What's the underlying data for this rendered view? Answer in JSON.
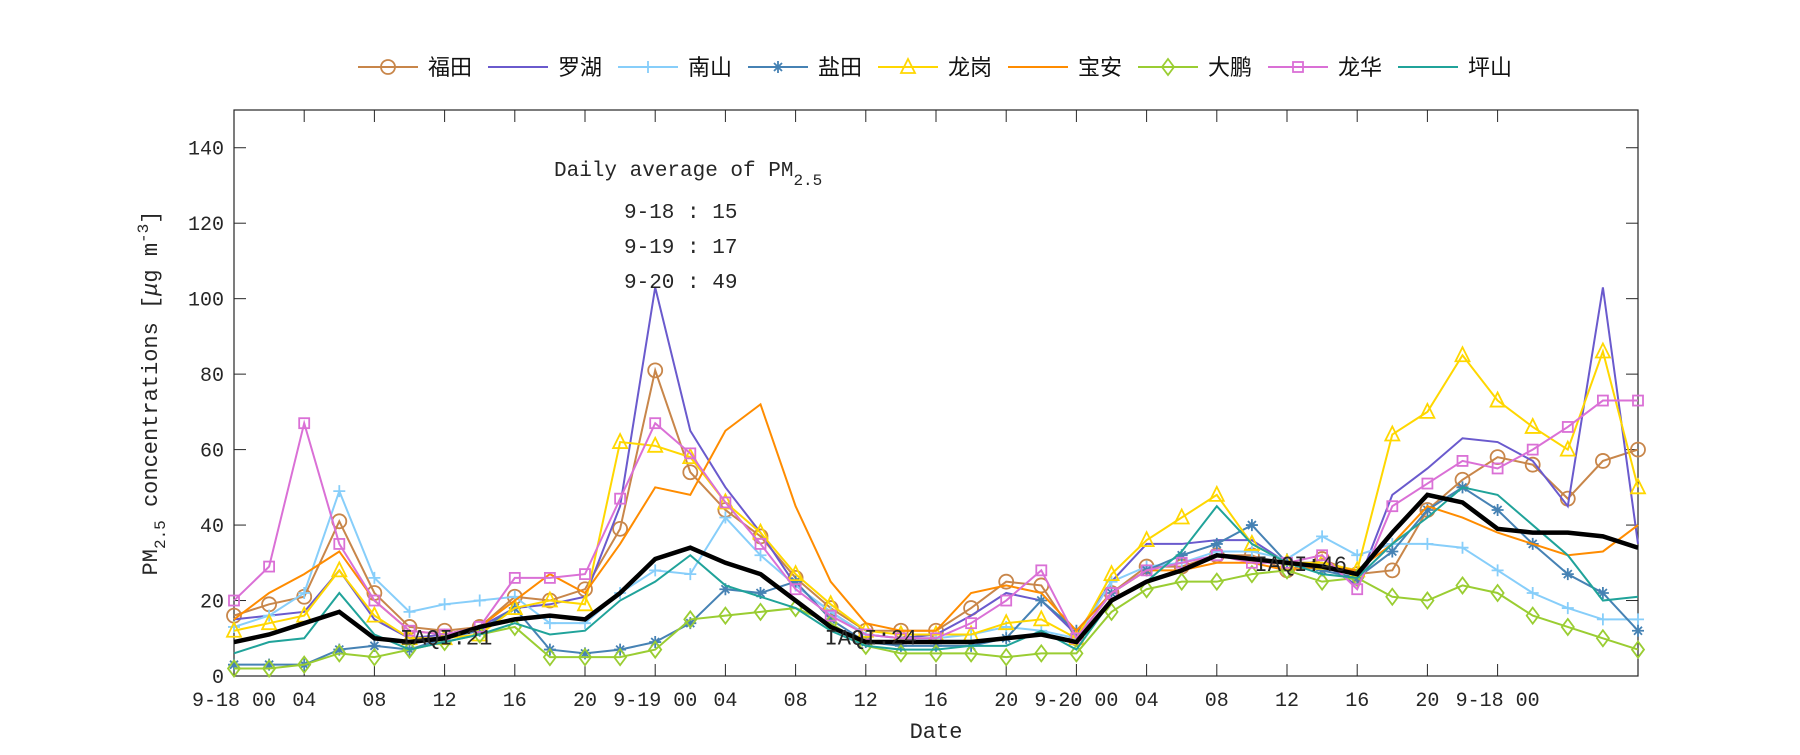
{
  "chart_data": {
    "type": "line",
    "xlabel": "Date",
    "ylabel": "PM2.5 concentrations [μg m-3]",
    "ylabel_parts": {
      "pre": "PM",
      "sub": "2.5",
      "mid": " concentrations [",
      "mu": "μ",
      "post": "g m",
      "sup": "-3",
      "end": "]"
    },
    "xlim": [
      0,
      80
    ],
    "ylim": [
      0,
      150
    ],
    "x_unit": "hours from 9-18 00",
    "x": [
      0,
      2,
      4,
      6,
      8,
      10,
      12,
      14,
      16,
      18,
      20,
      22,
      24,
      26,
      28,
      30,
      32,
      34,
      36,
      38,
      40,
      42,
      44,
      46,
      48,
      50,
      52,
      54,
      56,
      58,
      60,
      62,
      64,
      66,
      68,
      70,
      72,
      74,
      76,
      78,
      80
    ],
    "xticks": [
      {
        "v": 0,
        "label": "9-18 00"
      },
      {
        "v": 4,
        "label": "04"
      },
      {
        "v": 8,
        "label": "08"
      },
      {
        "v": 12,
        "label": "12"
      },
      {
        "v": 16,
        "label": "16"
      },
      {
        "v": 20,
        "label": "20"
      },
      {
        "v": 24,
        "label": "9-19 00"
      },
      {
        "v": 28,
        "label": "04"
      },
      {
        "v": 32,
        "label": "08"
      },
      {
        "v": 36,
        "label": "12"
      },
      {
        "v": 40,
        "label": "16"
      },
      {
        "v": 44,
        "label": "20"
      },
      {
        "v": 48,
        "label": "9-20 00"
      },
      {
        "v": 52,
        "label": "04"
      },
      {
        "v": 56,
        "label": "08"
      },
      {
        "v": 60,
        "label": "12"
      },
      {
        "v": 64,
        "label": "16"
      },
      {
        "v": 68,
        "label": "20"
      },
      {
        "v": 72,
        "label": "9-18 00"
      }
    ],
    "yticks": [
      0,
      20,
      40,
      60,
      80,
      100,
      120,
      140
    ],
    "grid": false,
    "legend_placement": "top-outside",
    "series": [
      {
        "name": "福田",
        "color": "#c8864a",
        "marker": "circle",
        "values": [
          16,
          19,
          21,
          41,
          22,
          13,
          12,
          13,
          21,
          20,
          23,
          39,
          81,
          54,
          44,
          37,
          26,
          18,
          12,
          12,
          12,
          18,
          25,
          24,
          10,
          22,
          29,
          29,
          32,
          32,
          28,
          31,
          27,
          28,
          44,
          52,
          58,
          56,
          47,
          57,
          60
        ]
      },
      {
        "name": "罗湖",
        "color": "#6a5acd",
        "marker": "none",
        "values": [
          15,
          16,
          17,
          28,
          15,
          10,
          11,
          13,
          18,
          19,
          21,
          45,
          103,
          65,
          50,
          38,
          24,
          17,
          11,
          10,
          11,
          16,
          22,
          20,
          11,
          25,
          35,
          35,
          36,
          36,
          30,
          30,
          24,
          48,
          55,
          63,
          62,
          57,
          45,
          103,
          35
        ]
      },
      {
        "name": "南山",
        "color": "#87cefa",
        "marker": "plus",
        "values": [
          13,
          16,
          22,
          49,
          26,
          17,
          19,
          20,
          21,
          14,
          14,
          22,
          28,
          27,
          42,
          32,
          24,
          17,
          11,
          10,
          10,
          11,
          13,
          12,
          10,
          25,
          29,
          30,
          33,
          33,
          31,
          37,
          32,
          35,
          35,
          34,
          28,
          22,
          18,
          15,
          15
        ]
      },
      {
        "name": "盐田",
        "color": "#4682b4",
        "marker": "star",
        "values": [
          3,
          3,
          3,
          7,
          8,
          7,
          10,
          12,
          18,
          7,
          6,
          7,
          9,
          14,
          23,
          22,
          25,
          15,
          9,
          8,
          8,
          8,
          10,
          20,
          12,
          22,
          28,
          32,
          35,
          40,
          30,
          28,
          26,
          33,
          44,
          50,
          44,
          35,
          27,
          22,
          12
        ]
      },
      {
        "name": "龙岗",
        "color": "#ffd700",
        "marker": "triangle",
        "values": [
          12,
          14,
          16,
          28,
          16,
          10,
          10,
          11,
          18,
          20,
          19,
          62,
          61,
          58,
          46,
          38,
          27,
          19,
          12,
          11,
          11,
          11,
          14,
          15,
          10,
          27,
          36,
          42,
          48,
          35,
          30,
          30,
          28,
          64,
          70,
          85,
          73,
          66,
          60,
          86,
          50
        ]
      },
      {
        "name": "宝安",
        "color": "#ff8c00",
        "marker": "none",
        "values": [
          15,
          22,
          27,
          33,
          20,
          12,
          11,
          13,
          20,
          27,
          22,
          35,
          50,
          48,
          65,
          72,
          45,
          25,
          14,
          12,
          12,
          22,
          24,
          22,
          12,
          22,
          28,
          28,
          30,
          30,
          28,
          29,
          28,
          35,
          45,
          42,
          38,
          35,
          32,
          33,
          40
        ]
      },
      {
        "name": "大鹏",
        "color": "#9acd32",
        "marker": "diamond",
        "values": [
          2,
          2,
          3,
          6,
          5,
          7,
          9,
          11,
          13,
          5,
          5,
          5,
          7,
          15,
          16,
          17,
          18,
          14,
          8,
          6,
          6,
          6,
          5,
          6,
          6,
          17,
          23,
          25,
          25,
          27,
          28,
          25,
          26,
          21,
          20,
          24,
          22,
          16,
          13,
          10,
          7
        ]
      },
      {
        "name": "龙华",
        "color": "#da70d6",
        "marker": "square",
        "values": [
          20,
          29,
          67,
          35,
          20,
          12,
          11,
          13,
          26,
          26,
          27,
          47,
          67,
          59,
          46,
          35,
          23,
          16,
          11,
          10,
          10,
          14,
          20,
          28,
          10,
          22,
          28,
          30,
          32,
          30,
          30,
          32,
          23,
          45,
          51,
          57,
          55,
          60,
          66,
          73,
          73
        ]
      },
      {
        "name": "坪山",
        "color": "#20a39a",
        "marker": "none",
        "values": [
          6,
          9,
          10,
          22,
          11,
          7,
          9,
          11,
          14,
          11,
          12,
          20,
          25,
          32,
          24,
          21,
          18,
          12,
          8,
          7,
          7,
          8,
          8,
          12,
          7,
          20,
          25,
          33,
          45,
          35,
          30,
          27,
          26,
          35,
          42,
          50,
          48,
          40,
          32,
          20,
          21
        ]
      }
    ],
    "average_line": {
      "color": "#000000",
      "values": [
        9,
        11,
        14,
        17,
        10,
        9,
        10,
        13,
        15,
        16,
        15,
        22,
        31,
        34,
        30,
        27,
        20,
        13,
        9,
        9,
        9,
        9,
        10,
        11,
        9,
        20,
        25,
        28,
        32,
        31,
        30,
        29,
        27,
        38,
        48,
        46,
        39,
        38,
        38,
        37,
        34
      ]
    },
    "annotations": {
      "box_title": "Daily average of PM",
      "box_title_sub": "2.5",
      "box_lines": [
        "9-18 : 15",
        "9-19 : 17",
        "9-20 : 49"
      ],
      "iaqi": [
        "IAQI:21",
        "IAQI:24",
        "IAQI:46"
      ]
    }
  }
}
